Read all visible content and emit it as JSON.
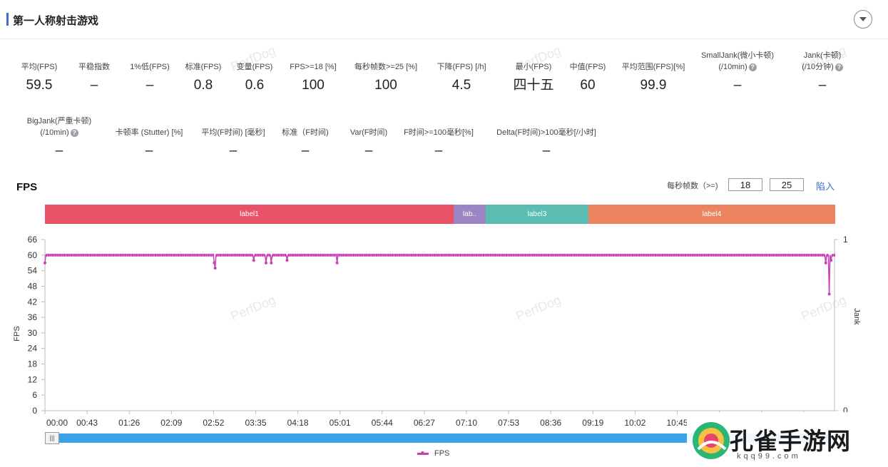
{
  "header": {
    "title": "第一人称射击游戏"
  },
  "metrics_row1": [
    {
      "label": "平均(FPS)",
      "value": "59.5",
      "help": false
    },
    {
      "label": "平稳指数",
      "value": "–",
      "help": true
    },
    {
      "label": "1%低(FPS)",
      "value": "–",
      "help": false
    },
    {
      "label": "标准(FPS)",
      "value": "0.8",
      "help": false
    },
    {
      "label": "变量(FPS)",
      "value": "0.6",
      "help": false
    },
    {
      "label": "FPS>=18 [%]",
      "value": "100",
      "help": false
    },
    {
      "label": "每秒帧数>=25 [%]",
      "value": "100",
      "help": false
    },
    {
      "label": "下降(FPS) [/h]",
      "value": "4.5",
      "help": true
    },
    {
      "label": "最小(FPS)",
      "value": "四十五",
      "help": false
    },
    {
      "label": "中值(FPS)",
      "value": "60",
      "help": false
    },
    {
      "label": "平均范围(FPS)[%]",
      "value": "99.9",
      "help": false
    },
    {
      "label": "SmallJank(微小卡顿)",
      "label2": "(/10min)",
      "value": "–",
      "help": true
    },
    {
      "label": "Jank(卡顿)",
      "label2": "(/10分钟)",
      "value": "–",
      "help": true
    }
  ],
  "metrics_row2": [
    {
      "label": "BigJank(严重卡顿)",
      "label2": "(/10min)",
      "value": "–",
      "help": true
    },
    {
      "label": "卡顿率 (Stutter) [%]",
      "value": "–",
      "help": false
    },
    {
      "label": "平均(F时间) [毫秒]",
      "value": "–",
      "help": false
    },
    {
      "label": "标准（F时间)",
      "value": "–",
      "help": false
    },
    {
      "label": "Var(F时间)",
      "value": "–",
      "help": false
    },
    {
      "label": "F时间>=100毫秒[%]",
      "value": "–",
      "help": false
    },
    {
      "label": "Delta(F时间)>100毫秒[/小时]",
      "value": "–",
      "help": true
    }
  ],
  "fps_panel": {
    "title": "FPS",
    "filter_label": "每秒帧数（>=)",
    "threshold1": "18",
    "threshold2": "25",
    "import_label": "陷入"
  },
  "labels": [
    {
      "name": "label1",
      "color": "#e9536a"
    },
    {
      "name": "lab..",
      "color": "#9b85c2"
    },
    {
      "name": "label3",
      "color": "#5bbdb1"
    },
    {
      "name": "label4",
      "color": "#ea8461"
    }
  ],
  "watermark": "PerfDog",
  "chart_data": {
    "type": "line",
    "xlabel": "",
    "ylabel": "FPS",
    "y2label": "Jank",
    "ylim": [
      0,
      66
    ],
    "y2lim": [
      0,
      1
    ],
    "yticks": [
      0,
      6,
      12,
      18,
      24,
      30,
      36,
      42,
      48,
      54,
      60,
      66
    ],
    "y2ticks": [
      0,
      1
    ],
    "xticks": [
      "00:00",
      "00:43",
      "01:26",
      "02:09",
      "02:52",
      "03:35",
      "04:18",
      "05:01",
      "05:44",
      "06:27",
      "07:10",
      "07:53",
      "08:36",
      "09:19",
      "10:02",
      "10:45"
    ],
    "series": [
      {
        "name": "FPS",
        "color": "#c940b9",
        "baseline": 60,
        "x_unit": "s",
        "x_max": 900,
        "dips": [
          {
            "x": 0,
            "y": 57
          },
          {
            "x": 193,
            "y": 57
          },
          {
            "x": 194,
            "y": 55
          },
          {
            "x": 238,
            "y": 58
          },
          {
            "x": 252,
            "y": 57
          },
          {
            "x": 258,
            "y": 57
          },
          {
            "x": 276,
            "y": 58
          },
          {
            "x": 333,
            "y": 57
          },
          {
            "x": 890,
            "y": 57
          },
          {
            "x": 894,
            "y": 45
          },
          {
            "x": 896,
            "y": 58
          }
        ]
      }
    ],
    "legend": "bottom",
    "grid": false
  },
  "brand": {
    "name": "孔雀手游网",
    "sub": "kqq99.com"
  }
}
